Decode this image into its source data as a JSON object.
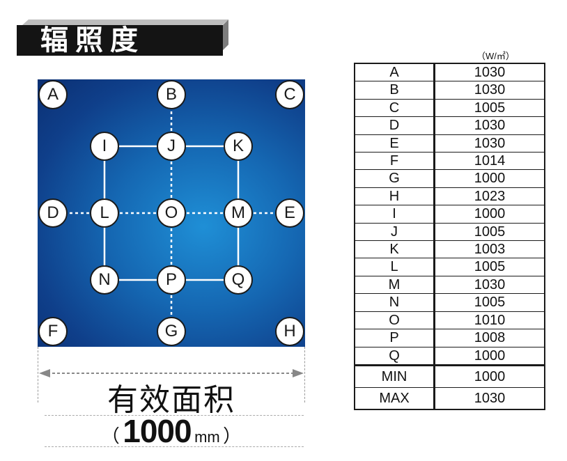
{
  "title": "辐照度",
  "unit": "（W/㎡）",
  "area_label": "有效面积",
  "dimension": {
    "open": "（",
    "value": "1000",
    "unit": "mm",
    "close": "）"
  },
  "points": [
    {
      "id": "A",
      "label": "A"
    },
    {
      "id": "B",
      "label": "B"
    },
    {
      "id": "C",
      "label": "C"
    },
    {
      "id": "I",
      "label": "I"
    },
    {
      "id": "J",
      "label": "J"
    },
    {
      "id": "K",
      "label": "K"
    },
    {
      "id": "D",
      "label": "D"
    },
    {
      "id": "L",
      "label": "L"
    },
    {
      "id": "O",
      "label": "O"
    },
    {
      "id": "M",
      "label": "M"
    },
    {
      "id": "E",
      "label": "E"
    },
    {
      "id": "N",
      "label": "N"
    },
    {
      "id": "P",
      "label": "P"
    },
    {
      "id": "Q",
      "label": "Q"
    },
    {
      "id": "F",
      "label": "F"
    },
    {
      "id": "G",
      "label": "G"
    },
    {
      "id": "H",
      "label": "H"
    }
  ],
  "readings": [
    {
      "point": "A",
      "value": "1030"
    },
    {
      "point": "B",
      "value": "1030"
    },
    {
      "point": "C",
      "value": "1005"
    },
    {
      "point": "D",
      "value": "1030"
    },
    {
      "point": "E",
      "value": "1030"
    },
    {
      "point": "F",
      "value": "1014"
    },
    {
      "point": "G",
      "value": "1000"
    },
    {
      "point": "H",
      "value": "1023"
    },
    {
      "point": "I",
      "value": "1000"
    },
    {
      "point": "J",
      "value": "1005"
    },
    {
      "point": "K",
      "value": "1003"
    },
    {
      "point": "L",
      "value": "1005"
    },
    {
      "point": "M",
      "value": "1030"
    },
    {
      "point": "N",
      "value": "1005"
    },
    {
      "point": "O",
      "value": "1010"
    },
    {
      "point": "P",
      "value": "1008"
    },
    {
      "point": "Q",
      "value": "1000"
    }
  ],
  "summary": [
    {
      "label": "MIN",
      "value": "1000"
    },
    {
      "label": "MAX",
      "value": "1030"
    }
  ],
  "colors": {
    "panel_light": "#1f8fd6",
    "panel_dark": "#0b2f72",
    "title_bg": "#141414"
  }
}
